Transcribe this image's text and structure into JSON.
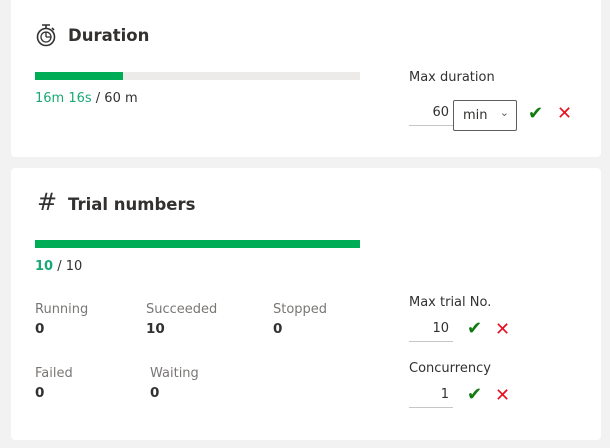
{
  "duration": {
    "title": "Duration",
    "progress_fraction": 0.271,
    "elapsed": "16m 16s",
    "total": " / 60 m",
    "max_label": "Max duration",
    "max_value": "60",
    "unit": "min",
    "icon": "stopwatch-icon"
  },
  "trials": {
    "title": "Trial numbers",
    "icon": "hash-icon",
    "progress_fraction": 1.0,
    "done": "10",
    "total": " / 10",
    "stats": [
      {
        "label": "Running",
        "value": "0"
      },
      {
        "label": "Succeeded",
        "value": "10"
      },
      {
        "label": "Stopped",
        "value": "0"
      },
      {
        "label": "Failed",
        "value": "0"
      },
      {
        "label": "Waiting",
        "value": "0"
      }
    ],
    "max_label": "Max trial No.",
    "max_value": "10",
    "concurrency_label": "Concurrency",
    "concurrency_value": "1"
  },
  "colors": {
    "accent": "#00ad56",
    "confirm": "#107c10",
    "cancel": "#e81123"
  }
}
